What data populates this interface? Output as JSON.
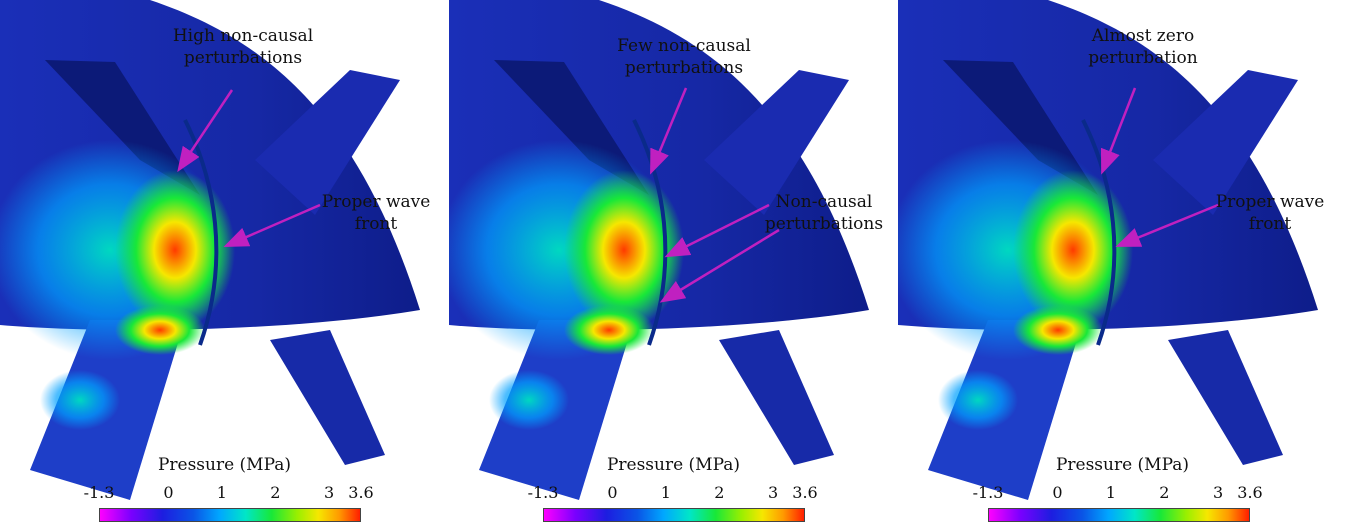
{
  "colors": {
    "background_surface": "#1a1f8f",
    "arrow": "#c020c0",
    "colormap": [
      "#ff00ff",
      "#7a00ff",
      "#2a2adf",
      "#0a3bd6",
      "#00a7ff",
      "#00e6c8",
      "#18e838",
      "#9bef00",
      "#f6e700",
      "#ff9a00",
      "#ff1e00"
    ]
  },
  "colorbar": {
    "title": "Pressure (MPa)",
    "ticks": [
      "-1.3",
      "0",
      "1",
      "2",
      "3",
      "3.6"
    ],
    "tick_values": [
      -1.3,
      0,
      1,
      2,
      3,
      3.6
    ],
    "range": [
      -1.3,
      3.6
    ]
  },
  "panels": [
    {
      "annotations": [
        {
          "line1": "High non-causal",
          "line2": "perturbations"
        },
        {
          "line1": "Proper wave",
          "line2": "front"
        }
      ]
    },
    {
      "annotations": [
        {
          "line1": "Few non-causal",
          "line2": "perturbations"
        },
        {
          "line1": "Non-causal",
          "line2": "perturbations"
        }
      ]
    },
    {
      "annotations": [
        {
          "line1": "Almost zero",
          "line2": "perturbation"
        },
        {
          "line1": "Proper wave",
          "line2": "front"
        }
      ]
    }
  ]
}
